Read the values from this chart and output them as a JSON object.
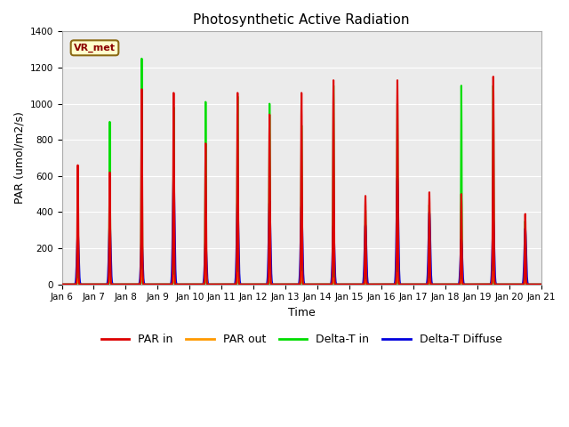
{
  "title": "Photosynthetic Active Radiation",
  "ylabel": "PAR (umol/m2/s)",
  "xlabel": "Time",
  "ylim": [
    0,
    1400
  ],
  "plot_bg_color": "#ebebeb",
  "label_box_text": "VR_met",
  "label_box_facecolor": "#ffffcc",
  "label_box_edgecolor": "#8b6914",
  "xtick_labels": [
    "Jan 6",
    "Jan 7",
    "Jan 8",
    "Jan 9",
    "Jan 10",
    "Jan 11",
    "Jan 12",
    "Jan 13",
    "Jan 14",
    "Jan 15",
    "Jan 16",
    "Jan 17",
    "Jan 18",
    "Jan 19",
    "Jan 20",
    "Jan 21"
  ],
  "colors": {
    "PAR_in": "#dd0000",
    "PAR_out": "#ff9900",
    "Delta_T_in": "#00dd00",
    "Delta_T_Diffuse": "#0000dd"
  },
  "legend_labels": [
    "PAR in",
    "PAR out",
    "Delta-T in",
    "Delta-T Diffuse"
  ],
  "num_days": 15,
  "points_per_day": 144,
  "par_in_peaks": [
    660,
    620,
    1080,
    1060,
    780,
    1060,
    940,
    1060,
    1130,
    490,
    1130,
    510,
    500,
    1150,
    390
  ],
  "par_out_peaks": [
    30,
    60,
    80,
    50,
    90,
    65,
    80,
    70,
    35,
    25,
    65,
    30,
    25,
    70,
    20
  ],
  "delta_t_in_peaks": [
    520,
    900,
    1250,
    980,
    1010,
    1040,
    1000,
    880,
    1100,
    410,
    1000,
    440,
    1100,
    1100,
    350
  ],
  "delta_t_diff_peaks": [
    300,
    350,
    250,
    620,
    240,
    460,
    460,
    440,
    330,
    330,
    590,
    400,
    250,
    365,
    310
  ],
  "par_in_spread": 2.0,
  "par_out_spread": 3.0,
  "delta_t_in_spread": 1.5,
  "delta_t_diff_spread": 4.0,
  "grid_color": "#ffffff",
  "yticks": [
    0,
    200,
    400,
    600,
    800,
    1000,
    1200,
    1400
  ]
}
